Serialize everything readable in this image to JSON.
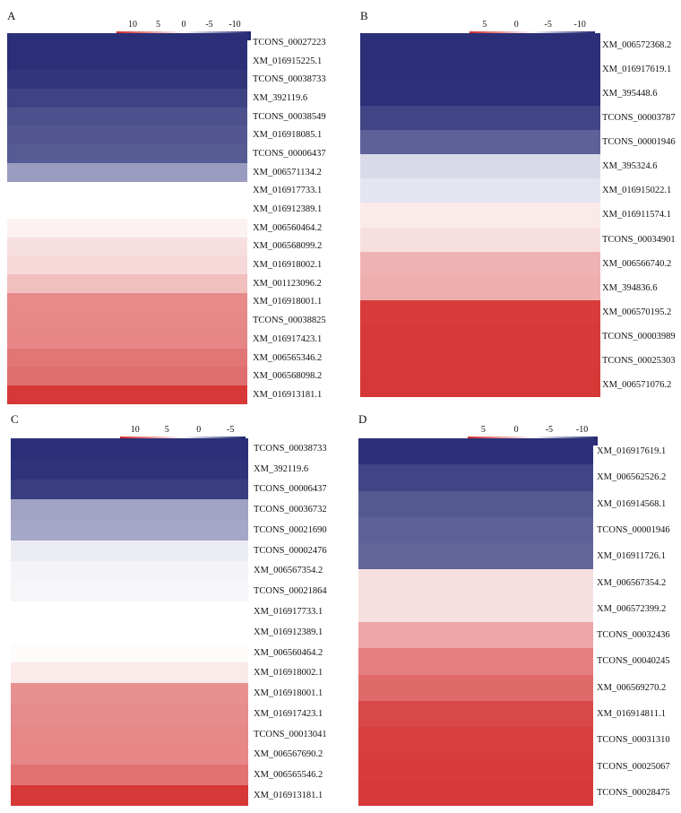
{
  "colors": {
    "red_max": "#d32a2a",
    "white": "#ffffff",
    "blue_max": "#1f2470"
  },
  "chart_data": [
    {
      "panel": "A",
      "type": "heatmap",
      "legend_ticks": [
        "10",
        "5",
        "0",
        "-5",
        "-10"
      ],
      "color_range": [
        10,
        -10
      ],
      "rows": [
        "TCONS_00027223",
        "XM_016915225.1",
        "TCONS_00038733",
        "XM_392119.6",
        "TCONS_00038549",
        "XM_016918085.1",
        "TCONS_00006437",
        "XM_006571134.2",
        "XM_016917733.1",
        "XM_016912389.1",
        "XM_006560464.2",
        "XM_006568099.2",
        "XM_016918002.1",
        "XM_001123096.2",
        "XM_016918001.1",
        "TCONS_00038825",
        "XM_016917423.1",
        "XM_006565346.2",
        "XM_006568098.2",
        "XM_016913181.1"
      ],
      "values": [
        -9.5,
        -9.5,
        -9.2,
        -8.6,
        -8.0,
        -7.7,
        -7.5,
        -4.5,
        0,
        0,
        0.6,
        1.5,
        1.8,
        3.0,
        5.5,
        5.6,
        5.7,
        6.5,
        6.8,
        9.4
      ]
    },
    {
      "panel": "B",
      "type": "heatmap",
      "legend_ticks": [
        "5",
        "0",
        "-5",
        "-10"
      ],
      "color_range": [
        10,
        -10
      ],
      "rows": [
        "XM_006572368.2",
        "XM_016917619.1",
        "XM_395448.6",
        "TCONS_00003787",
        "TCONS_00001946",
        "XM_395324.6",
        "XM_016915022.1",
        "XM_016911574.1",
        "TCONS_00034901",
        "XM_006566740.2",
        "XM_394836.6",
        "XM_006570195.2",
        "TCONS_00003989",
        "TCONS_00025303",
        "XM_006571076.2"
      ],
      "values": [
        -9.5,
        -9.5,
        -9.4,
        -8.5,
        -7.2,
        -1.7,
        -1.2,
        1.0,
        1.5,
        3.6,
        3.8,
        9.2,
        9.3,
        9.3,
        9.4
      ]
    },
    {
      "panel": "C",
      "type": "heatmap",
      "legend_ticks": [
        "10",
        "5",
        "0",
        "-5"
      ],
      "color_range": [
        10,
        -10
      ],
      "rows": [
        "TCONS_00038733",
        "XM_392119.6",
        "TCONS_00006437",
        "TCONS_00036732",
        "TCONS_00021690",
        "TCONS_00002476",
        "XM_006567354.2",
        "TCONS_00021864",
        "XM_016917733.1",
        "XM_016912389.1",
        "XM_006560464.2",
        "XM_016918002.1",
        "XM_016918001.1",
        "XM_016917423.1",
        "TCONS_00013041",
        "XM_006567690.2",
        "XM_006565546.2",
        "XM_016913181.1"
      ],
      "values": [
        -9.5,
        -9.3,
        -8.8,
        -4.2,
        -4.0,
        -0.9,
        -0.5,
        -0.4,
        0,
        0,
        0.2,
        1.0,
        5.2,
        5.4,
        5.6,
        5.7,
        6.6,
        9.4
      ]
    },
    {
      "panel": "D",
      "type": "heatmap",
      "legend_ticks": [
        "5",
        "0",
        "-5",
        "-10"
      ],
      "color_range": [
        10,
        -10
      ],
      "rows": [
        "XM_016917619.1",
        "XM_006562526.2",
        "XM_016914568.1",
        "TCONS_00001946",
        "XM_016911726.1",
        "XM_006567354.2",
        "XM_006572399.2",
        "TCONS_00032436",
        "TCONS_00040245",
        "XM_006569270.2",
        "XM_016914811.1",
        "TCONS_00031310",
        "TCONS_00025067",
        "TCONS_00028475"
      ],
      "values": [
        -9.5,
        -8.5,
        -7.6,
        -7.2,
        -7.0,
        1.5,
        1.5,
        4.2,
        6.0,
        7.0,
        8.6,
        9.0,
        9.2,
        9.3
      ]
    }
  ]
}
